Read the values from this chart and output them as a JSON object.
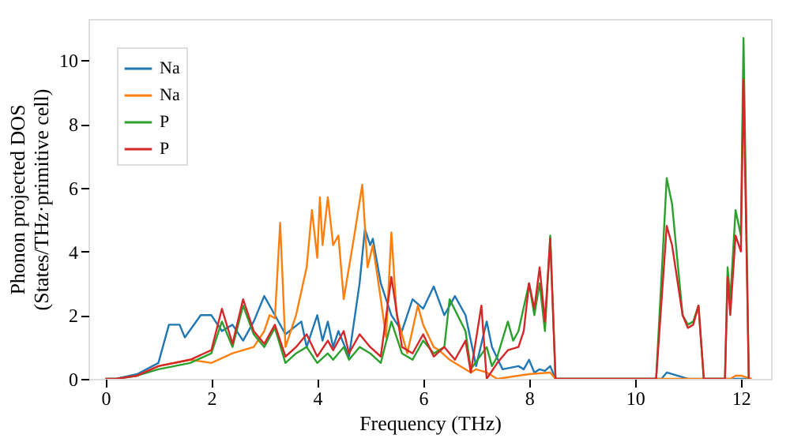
{
  "chart_data": {
    "type": "line",
    "xlabel": "Frequency (THz)",
    "ylabel": "Phonon projected DOS\n(States/THz·primitive cell)",
    "xlim": [
      -0.32,
      12.57
    ],
    "ylim": [
      0,
      11.3
    ],
    "xticks": [
      0,
      2,
      4,
      6,
      8,
      10,
      12
    ],
    "yticks": [
      0,
      2,
      4,
      6,
      8,
      10
    ],
    "grid": false,
    "legend": "top left",
    "marker": "none",
    "line_style": "solid",
    "series": [
      {
        "name": "Na",
        "color": "#1f77b4",
        "x": [
          0,
          0.2,
          0.6,
          1.0,
          1.2,
          1.4,
          1.5,
          1.8,
          2.0,
          2.2,
          2.4,
          2.6,
          2.8,
          3.0,
          3.2,
          3.4,
          3.7,
          3.8,
          4.0,
          4.1,
          4.2,
          4.3,
          4.4,
          4.6,
          4.8,
          4.9,
          5.0,
          5.05,
          5.2,
          5.4,
          5.6,
          5.8,
          6.0,
          6.2,
          6.4,
          6.6,
          6.8,
          6.9,
          7.0,
          7.2,
          7.3,
          7.5,
          7.8,
          7.9,
          8.0,
          8.1,
          8.2,
          8.3,
          8.4,
          8.5,
          10.5,
          10.6,
          10.8,
          11.0,
          12.2
        ],
        "values": [
          0,
          0,
          0.15,
          0.5,
          1.7,
          1.7,
          1.3,
          2.0,
          2.0,
          1.5,
          1.7,
          1.2,
          1.8,
          2.6,
          2.0,
          1.4,
          1.8,
          1.0,
          2.0,
          1.2,
          1.8,
          1.0,
          1.5,
          0.7,
          3.0,
          4.7,
          4.2,
          4.4,
          3.0,
          2.0,
          1.5,
          2.5,
          2.2,
          2.9,
          2.0,
          2.6,
          2.0,
          1.2,
          0.4,
          1.8,
          1.0,
          0.3,
          0.4,
          0.3,
          0.6,
          0.2,
          0.3,
          0.25,
          0.4,
          0,
          0,
          0.2,
          0.1,
          0,
          0
        ]
      },
      {
        "name": "Na",
        "color": "#ff7f0e",
        "x": [
          0.6,
          1.0,
          1.6,
          2.0,
          2.4,
          2.8,
          3.0,
          3.1,
          3.2,
          3.3,
          3.4,
          3.6,
          3.8,
          3.9,
          4.0,
          4.05,
          4.1,
          4.2,
          4.3,
          4.4,
          4.5,
          4.6,
          4.7,
          4.85,
          4.95,
          5.05,
          5.2,
          5.3,
          5.4,
          5.5,
          5.7,
          5.9,
          6.0,
          6.2,
          6.3,
          6.5,
          6.9,
          7.0,
          7.2,
          7.4,
          7.8,
          8.0,
          8.4,
          8.5,
          11.8,
          11.9,
          12.0,
          12.2
        ],
        "values": [
          0.1,
          0.4,
          0.6,
          0.5,
          0.8,
          1.0,
          1.5,
          2.0,
          1.9,
          4.9,
          1.0,
          2.0,
          3.5,
          5.3,
          3.8,
          5.7,
          4.2,
          5.7,
          4.2,
          4.5,
          2.5,
          3.5,
          4.5,
          6.1,
          3.5,
          4.2,
          2.5,
          1.3,
          4.6,
          2.0,
          0.8,
          2.3,
          1.7,
          1.0,
          0.9,
          0.6,
          0.2,
          0.3,
          0.2,
          0,
          0.1,
          0.15,
          0.2,
          0,
          0,
          0.1,
          0.1,
          0
        ]
      },
      {
        "name": "P",
        "color": "#2ca02c",
        "x": [
          0,
          0.2,
          0.6,
          1.0,
          1.6,
          2.0,
          2.2,
          2.4,
          2.6,
          2.8,
          3.0,
          3.2,
          3.4,
          3.6,
          3.8,
          4.0,
          4.2,
          4.3,
          4.5,
          4.6,
          4.8,
          5.0,
          5.2,
          5.4,
          5.6,
          5.8,
          6.0,
          6.2,
          6.4,
          6.5,
          6.8,
          6.9,
          7.2,
          7.3,
          7.4,
          7.6,
          7.7,
          7.8,
          8.0,
          8.1,
          8.2,
          8.3,
          8.4,
          8.5,
          10.4,
          10.6,
          10.7,
          10.9,
          11.0,
          11.1,
          11.2,
          11.3,
          11.7,
          11.75,
          11.8,
          11.9,
          12.0,
          12.05,
          12.15
        ],
        "values": [
          0,
          0,
          0.1,
          0.3,
          0.5,
          0.8,
          1.8,
          1.0,
          2.3,
          1.4,
          1.0,
          1.6,
          0.5,
          0.8,
          1.0,
          0.5,
          0.8,
          0.6,
          1.0,
          0.6,
          1.0,
          0.8,
          0.5,
          1.8,
          0.8,
          0.6,
          1.2,
          0.8,
          1.0,
          2.5,
          1.5,
          0.3,
          1.0,
          0.4,
          0.7,
          1.8,
          1.2,
          1.5,
          3.0,
          2.0,
          3.0,
          1.5,
          4.5,
          0,
          0,
          6.3,
          5.5,
          2.0,
          1.7,
          1.8,
          2.3,
          0,
          0,
          3.5,
          2.5,
          5.3,
          4.5,
          10.7,
          0
        ]
      },
      {
        "name": "P",
        "color": "#d62728",
        "x": [
          0,
          0.2,
          0.6,
          1.0,
          1.6,
          2.0,
          2.2,
          2.4,
          2.6,
          2.8,
          3.0,
          3.2,
          3.4,
          3.6,
          3.8,
          4.0,
          4.2,
          4.3,
          4.5,
          4.6,
          4.8,
          5.0,
          5.2,
          5.4,
          5.6,
          5.8,
          6.0,
          6.2,
          6.4,
          6.6,
          6.8,
          6.9,
          7.1,
          7.2,
          7.4,
          7.6,
          7.8,
          7.9,
          8.0,
          8.1,
          8.2,
          8.3,
          8.4,
          8.5,
          10.4,
          10.6,
          10.7,
          10.9,
          11.0,
          11.1,
          11.2,
          11.3,
          11.7,
          11.75,
          11.8,
          11.9,
          12.0,
          12.05,
          12.15
        ],
        "values": [
          0,
          0,
          0.1,
          0.4,
          0.6,
          0.9,
          2.2,
          1.1,
          2.5,
          1.5,
          1.1,
          1.7,
          0.7,
          1.0,
          1.4,
          0.7,
          1.2,
          0.9,
          1.5,
          0.8,
          1.4,
          1.0,
          0.7,
          3.2,
          1.0,
          0.8,
          1.4,
          0.7,
          1.0,
          0.6,
          1.2,
          0.2,
          2.3,
          0,
          0.5,
          0.9,
          1.0,
          1.5,
          3.0,
          2.2,
          3.5,
          1.8,
          4.4,
          0,
          0,
          4.8,
          4.2,
          2.0,
          1.6,
          1.7,
          2.3,
          0,
          0,
          3.2,
          2.0,
          4.5,
          4.0,
          9.4,
          0
        ]
      }
    ]
  }
}
